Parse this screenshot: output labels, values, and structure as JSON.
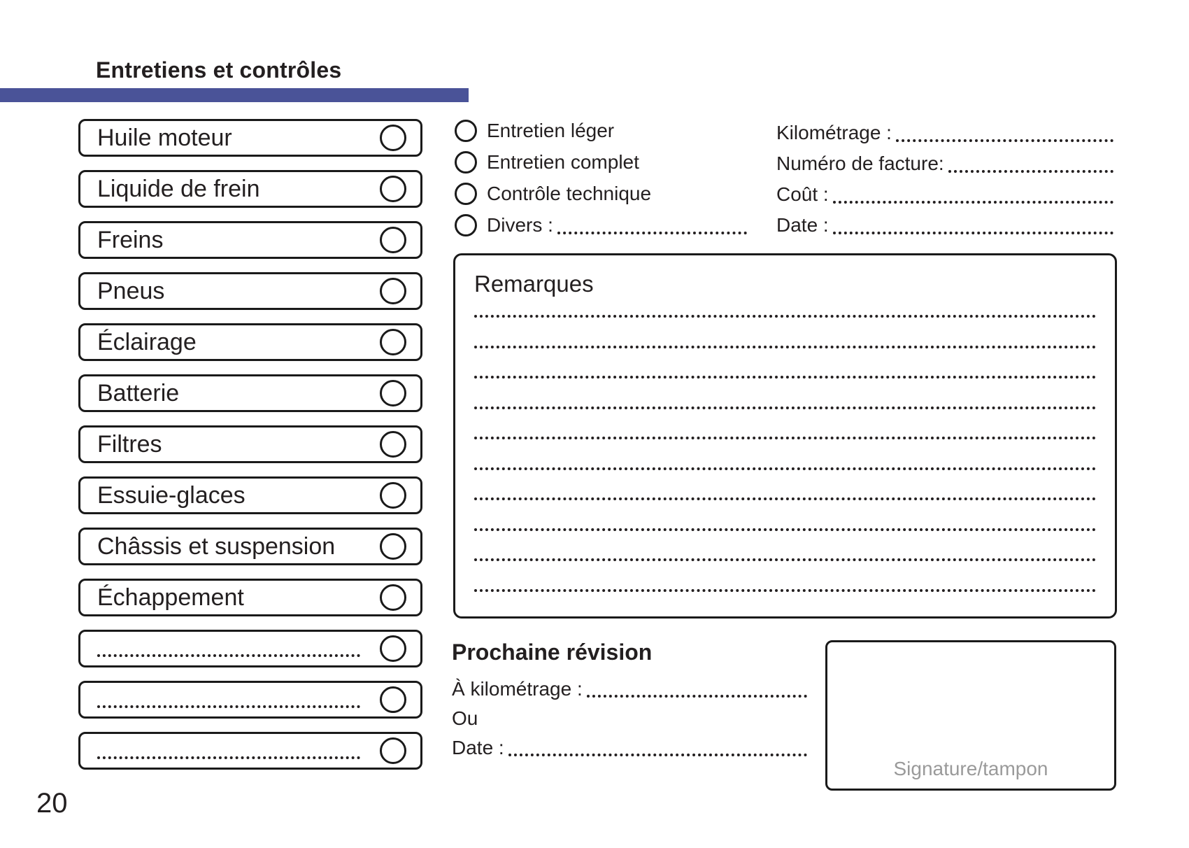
{
  "page": {
    "number": "20"
  },
  "colors": {
    "accent_bar": "#4a5398",
    "ink": "#231f20",
    "signature_gray": "#9a9a9a"
  },
  "header": {
    "title": "Entretiens et contrôles"
  },
  "checklist": {
    "items": [
      {
        "label": "Huile moteur",
        "dotted": false
      },
      {
        "label": "Liquide de frein",
        "dotted": false
      },
      {
        "label": "Freins",
        "dotted": false
      },
      {
        "label": "Pneus",
        "dotted": false
      },
      {
        "label": "Éclairage",
        "dotted": false
      },
      {
        "label": "Batterie",
        "dotted": false
      },
      {
        "label": "Filtres",
        "dotted": false
      },
      {
        "label": "Essuie-glaces",
        "dotted": false
      },
      {
        "label": "Châssis et suspension",
        "dotted": false
      },
      {
        "label": "Échappement",
        "dotted": false
      },
      {
        "label": "",
        "dotted": true
      },
      {
        "label": "",
        "dotted": true
      },
      {
        "label": "",
        "dotted": true
      }
    ]
  },
  "service_type": {
    "options": [
      {
        "label": "Entretien léger",
        "leader": false
      },
      {
        "label": "Entretien complet",
        "leader": false
      },
      {
        "label": "Contrôle technique",
        "leader": false
      },
      {
        "label": "Divers :",
        "leader": true
      }
    ]
  },
  "invoice_fields": {
    "fields": [
      {
        "label": "Kilométrage :"
      },
      {
        "label": "Numéro de facture:"
      },
      {
        "label": "Coût :"
      },
      {
        "label": "Date :"
      }
    ]
  },
  "remarks": {
    "title": "Remarques",
    "line_count": 10
  },
  "next_service": {
    "title": "Prochaine révision",
    "rows": [
      {
        "label": "À kilométrage :",
        "leader": true
      },
      {
        "label": "Ou",
        "leader": false
      },
      {
        "label": "Date :",
        "leader": true
      }
    ]
  },
  "signature": {
    "label": "Signature/tampon"
  }
}
